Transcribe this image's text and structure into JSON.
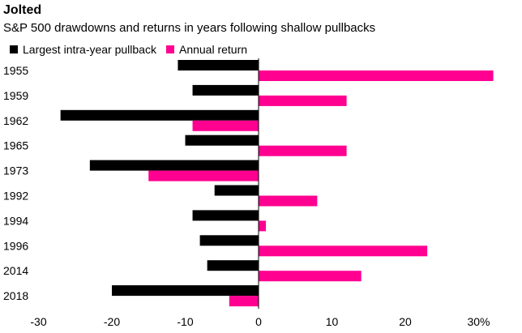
{
  "title": "Jolted",
  "subtitle": "S&P 500 drawdowns and returns in years following shallow pullbacks",
  "colors": {
    "pullback": "#000000",
    "return": "#ff0090"
  },
  "chart_data": {
    "type": "bar",
    "orientation": "horizontal",
    "categories": [
      "1955",
      "1959",
      "1962",
      "1965",
      "1973",
      "1992",
      "1994",
      "1996",
      "2014",
      "2018"
    ],
    "series": [
      {
        "name": "Largest intra-year pullback",
        "values": [
          -11,
          -9,
          -27,
          -10,
          -23,
          -6,
          -9,
          -8,
          -7,
          -20
        ]
      },
      {
        "name": "Annual return",
        "values": [
          32,
          12,
          -9,
          12,
          -15,
          8,
          1,
          23,
          14,
          -4
        ]
      }
    ],
    "xlim": [
      -30,
      33
    ],
    "ticks": [
      {
        "value": -30,
        "label": "-30"
      },
      {
        "value": -20,
        "label": "-20"
      },
      {
        "value": -10,
        "label": "-10"
      },
      {
        "value": 0,
        "label": "0"
      },
      {
        "value": 10,
        "label": "10"
      },
      {
        "value": 20,
        "label": "20"
      },
      {
        "value": 30,
        "label": "30%"
      }
    ],
    "legend_position": "top-left",
    "grid": false
  }
}
